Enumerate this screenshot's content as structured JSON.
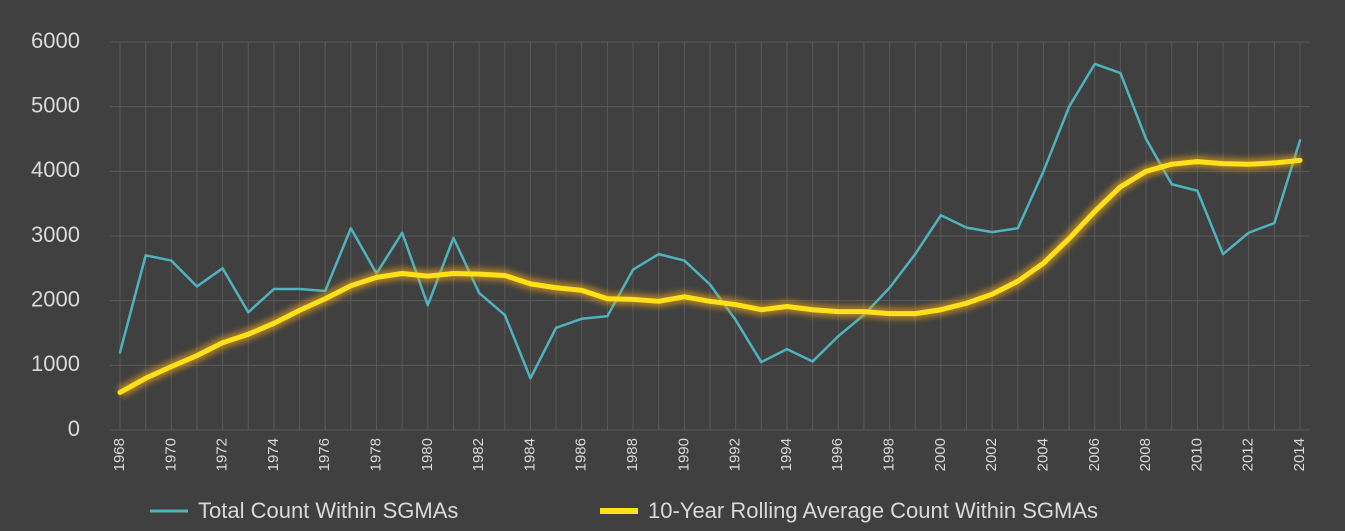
{
  "chart_data": {
    "type": "line",
    "x": [
      1968,
      1969,
      1970,
      1971,
      1972,
      1973,
      1974,
      1975,
      1976,
      1977,
      1978,
      1979,
      1980,
      1981,
      1982,
      1983,
      1984,
      1985,
      1986,
      1987,
      1988,
      1989,
      1990,
      1991,
      1992,
      1993,
      1994,
      1995,
      1996,
      1997,
      1998,
      1999,
      2000,
      2001,
      2002,
      2003,
      2004,
      2005,
      2006,
      2007,
      2008,
      2009,
      2010,
      2011,
      2012,
      2013,
      2014
    ],
    "xlim": [
      1968,
      2014
    ],
    "xticks": [
      1968,
      1970,
      1972,
      1974,
      1976,
      1978,
      1980,
      1982,
      1984,
      1986,
      1988,
      1990,
      1992,
      1994,
      1996,
      1998,
      2000,
      2002,
      2004,
      2006,
      2008,
      2010,
      2012,
      2014
    ],
    "ylim": [
      0,
      6000
    ],
    "yticks": [
      0,
      1000,
      2000,
      3000,
      4000,
      5000,
      6000
    ],
    "grid": true,
    "legend": "bottom",
    "series": [
      {
        "name": "Total Count Within SGMAs",
        "color": "#4fb3bf",
        "values": [
          1200,
          2700,
          2620,
          2220,
          2500,
          1820,
          2180,
          2180,
          2150,
          3120,
          2420,
          3050,
          1930,
          2970,
          2120,
          1780,
          800,
          1580,
          1720,
          1760,
          2480,
          2720,
          2620,
          2250,
          1700,
          1050,
          1250,
          1060,
          1450,
          1780,
          2200,
          2720,
          3320,
          3130,
          3060,
          3120,
          4000,
          5000,
          5660,
          5520,
          4500,
          3800,
          3700,
          2720,
          3050,
          3200,
          4480
        ]
      },
      {
        "name": "10-Year Rolling Average Count Within SGMAs",
        "color": "#ffe11a",
        "values": [
          580,
          800,
          980,
          1150,
          1350,
          1480,
          1650,
          1850,
          2030,
          2230,
          2360,
          2420,
          2380,
          2420,
          2410,
          2390,
          2260,
          2200,
          2160,
          2030,
          2020,
          1990,
          2060,
          1990,
          1940,
          1860,
          1910,
          1860,
          1830,
          1830,
          1800,
          1800,
          1860,
          1960,
          2100,
          2300,
          2580,
          2960,
          3380,
          3760,
          4000,
          4110,
          4150,
          4120,
          4110,
          4130,
          4170
        ]
      }
    ]
  }
}
